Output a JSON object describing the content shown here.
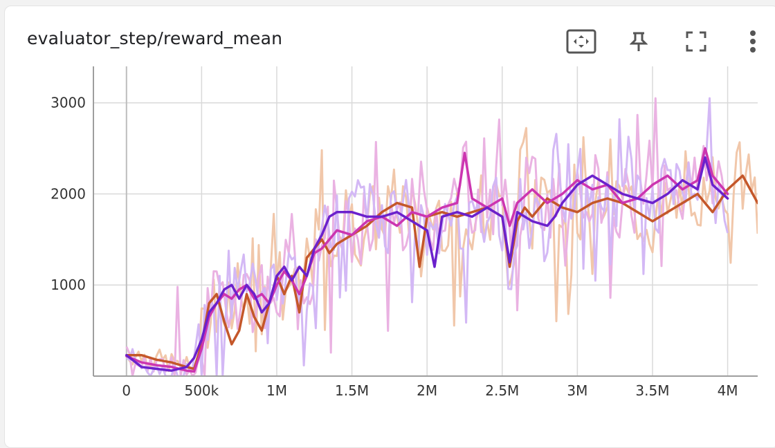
{
  "card": {
    "title": "evaluator_step/reward_mean"
  },
  "toolbar": {
    "fit_icon": "fit-domain-icon",
    "pin_icon": "pin-icon",
    "fullscreen_icon": "fullscreen-icon",
    "menu_icon": "more-vert-icon"
  },
  "colors": {
    "orange": "#c4572a",
    "magenta": "#cc35b0",
    "purple": "#6b21cc",
    "orange_raw": "#f1c7aa",
    "magenta_raw": "#eab2e2",
    "purple_raw": "#d3b8f5",
    "grid": "#d9d9d9",
    "axis": "#9e9e9e"
  },
  "chart_data": {
    "type": "line",
    "title": "evaluator_step/reward_mean",
    "xlabel": "",
    "ylabel": "",
    "xlim": [
      -220000,
      4200000
    ],
    "ylim": [
      0,
      3400
    ],
    "grid": true,
    "x_ticks": [
      {
        "value": 0,
        "label": "0"
      },
      {
        "value": 500000,
        "label": "500k"
      },
      {
        "value": 1000000,
        "label": "1M"
      },
      {
        "value": 1500000,
        "label": "1.5M"
      },
      {
        "value": 2000000,
        "label": "2M"
      },
      {
        "value": 2500000,
        "label": "2.5M"
      },
      {
        "value": 3000000,
        "label": "3M"
      },
      {
        "value": 3500000,
        "label": "3.5M"
      },
      {
        "value": 4000000,
        "label": "4M"
      }
    ],
    "y_ticks": [
      {
        "value": 1000,
        "label": "1000"
      },
      {
        "value": 2000,
        "label": "2000"
      },
      {
        "value": 3000,
        "label": "3000"
      }
    ],
    "series": [
      {
        "color": "#c4572a",
        "raw_color": "#f1c7aa",
        "x": [
          0,
          100000,
          200000,
          300000,
          400000,
          450000,
          500000,
          550000,
          600000,
          650000,
          700000,
          750000,
          800000,
          850000,
          900000,
          950000,
          1000000,
          1050000,
          1100000,
          1150000,
          1200000,
          1250000,
          1300000,
          1350000,
          1400000,
          1500000,
          1600000,
          1700000,
          1800000,
          1900000,
          1950000,
          2000000,
          2100000,
          2200000,
          2300000,
          2400000,
          2500000,
          2550000,
          2600000,
          2650000,
          2700000,
          2800000,
          2900000,
          3000000,
          3100000,
          3200000,
          3300000,
          3400000,
          3500000,
          3600000,
          3700000,
          3800000,
          3900000,
          4000000,
          4100000,
          4200000
        ],
        "values": [
          230,
          230,
          180,
          150,
          100,
          80,
          350,
          800,
          900,
          600,
          350,
          500,
          900,
          650,
          500,
          800,
          1100,
          900,
          1100,
          700,
          1300,
          1400,
          1500,
          1350,
          1450,
          1550,
          1650,
          1800,
          1900,
          1850,
          1200,
          1750,
          1800,
          1750,
          1800,
          1850,
          1750,
          1200,
          1700,
          1850,
          1750,
          1950,
          1850,
          1800,
          1900,
          1950,
          1900,
          1800,
          1700,
          1800,
          1900,
          2000,
          1800,
          2050,
          2200,
          1900
        ]
      },
      {
        "color": "#cc35b0",
        "raw_color": "#eab2e2",
        "x": [
          0,
          100000,
          200000,
          300000,
          400000,
          450000,
          500000,
          550000,
          600000,
          650000,
          700000,
          750000,
          800000,
          850000,
          900000,
          950000,
          1000000,
          1050000,
          1100000,
          1150000,
          1200000,
          1250000,
          1300000,
          1350000,
          1400000,
          1500000,
          1600000,
          1700000,
          1800000,
          1900000,
          2000000,
          2100000,
          2200000,
          2250000,
          2300000,
          2400000,
          2500000,
          2550000,
          2600000,
          2700000,
          2800000,
          2900000,
          3000000,
          3100000,
          3200000,
          3300000,
          3400000,
          3500000,
          3600000,
          3700000,
          3800000,
          3850000,
          3900000,
          4000000
        ],
        "values": [
          220,
          150,
          120,
          100,
          60,
          50,
          300,
          650,
          800,
          900,
          850,
          950,
          1000,
          850,
          900,
          800,
          1000,
          1150,
          1050,
          900,
          1100,
          1350,
          1400,
          1500,
          1600,
          1550,
          1700,
          1750,
          1650,
          1800,
          1750,
          1850,
          1900,
          2450,
          1950,
          1850,
          1950,
          1650,
          1900,
          2050,
          1900,
          2000,
          2150,
          2050,
          2100,
          1900,
          1950,
          2100,
          2200,
          2050,
          2150,
          2500,
          2200,
          2000
        ]
      },
      {
        "color": "#6b21cc",
        "raw_color": "#d3b8f5",
        "x": [
          0,
          100000,
          200000,
          300000,
          400000,
          450000,
          500000,
          550000,
          600000,
          650000,
          700000,
          750000,
          800000,
          850000,
          900000,
          950000,
          1000000,
          1050000,
          1100000,
          1150000,
          1200000,
          1250000,
          1300000,
          1350000,
          1400000,
          1500000,
          1600000,
          1700000,
          1800000,
          1900000,
          2000000,
          2050000,
          2100000,
          2200000,
          2300000,
          2400000,
          2500000,
          2550000,
          2600000,
          2700000,
          2800000,
          2850000,
          2900000,
          3000000,
          3100000,
          3200000,
          3300000,
          3400000,
          3500000,
          3600000,
          3700000,
          3800000,
          3850000,
          3900000,
          4000000
        ],
        "values": [
          230,
          100,
          80,
          60,
          100,
          200,
          400,
          700,
          800,
          950,
          1000,
          850,
          1000,
          900,
          700,
          800,
          1100,
          1200,
          1050,
          1200,
          1100,
          1400,
          1550,
          1750,
          1800,
          1800,
          1750,
          1750,
          1800,
          1700,
          1600,
          1200,
          1750,
          1800,
          1750,
          1850,
          1750,
          1250,
          1800,
          1700,
          1650,
          1750,
          1900,
          2100,
          2200,
          2100,
          2000,
          1950,
          1900,
          2000,
          2150,
          2050,
          2400,
          2100,
          1950
        ]
      }
    ]
  }
}
